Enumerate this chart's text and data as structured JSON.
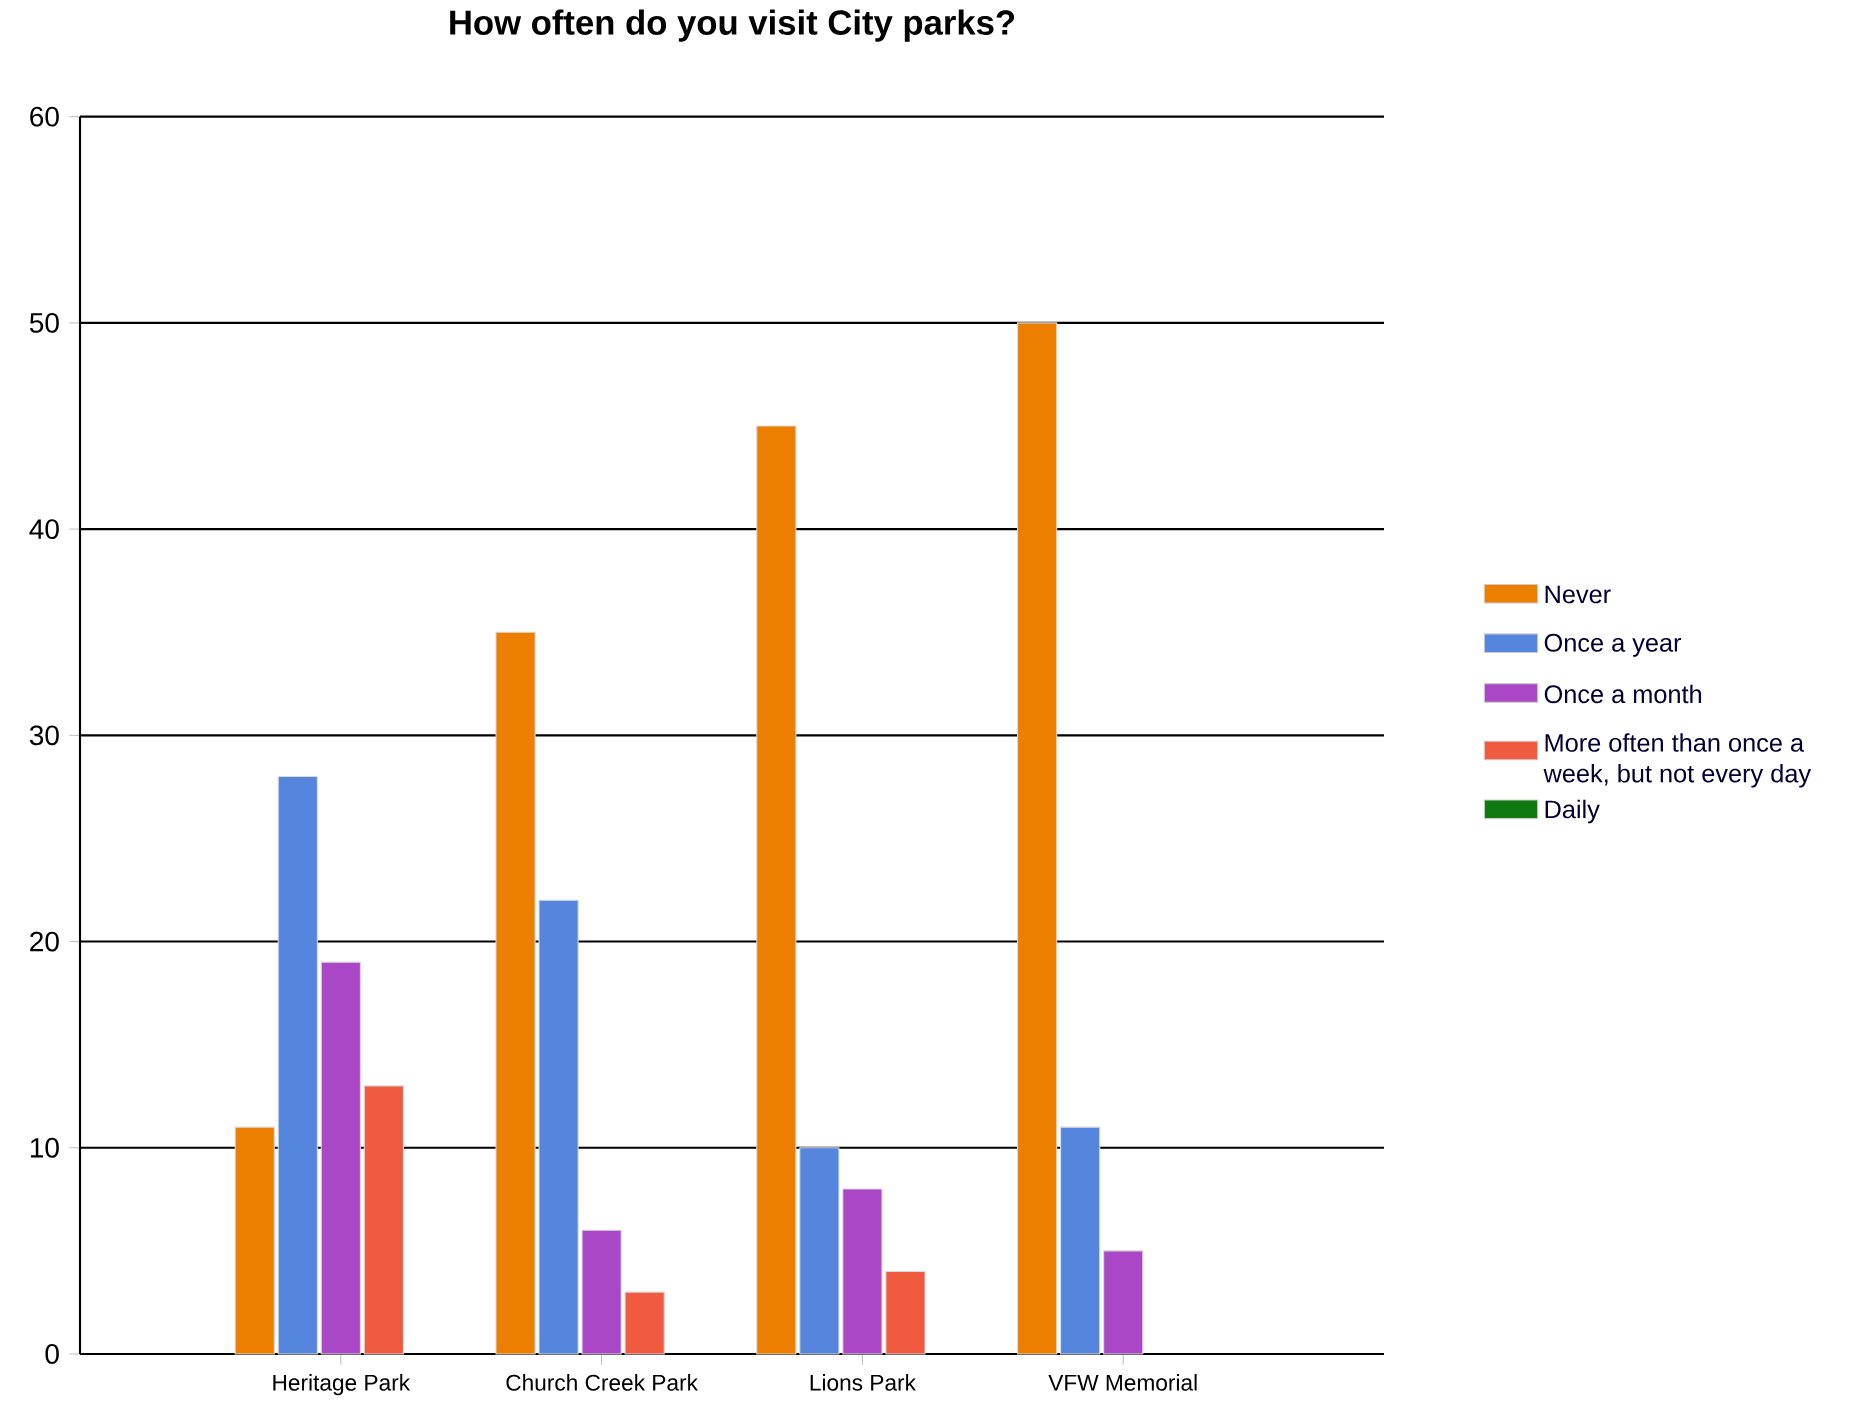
{
  "chart_data": {
    "type": "bar",
    "title": "How often do you visit City parks?",
    "categories": [
      "Heritage Park",
      "Church Creek Park",
      "Lions Park",
      "VFW Memorial"
    ],
    "series": [
      {
        "name": "Never",
        "color": "#ec7f00",
        "values": [
          11,
          35,
          45,
          50
        ]
      },
      {
        "name": "Once a year",
        "color": "#5585dc",
        "values": [
          28,
          22,
          10,
          11
        ]
      },
      {
        "name": "Once a month",
        "color": "#a947c6",
        "values": [
          19,
          6,
          8,
          5
        ]
      },
      {
        "name": "More often than once a week, but not every day",
        "color": "#f05a3e",
        "values": [
          13,
          3,
          4,
          null
        ]
      },
      {
        "name": "Daily",
        "color": "#0f7a0f",
        "values": [
          null,
          null,
          null,
          null
        ]
      }
    ],
    "ylim": [
      0,
      60
    ],
    "yticks": [
      0,
      10,
      20,
      30,
      40,
      50,
      60
    ],
    "grid": "y",
    "legend": "right"
  }
}
